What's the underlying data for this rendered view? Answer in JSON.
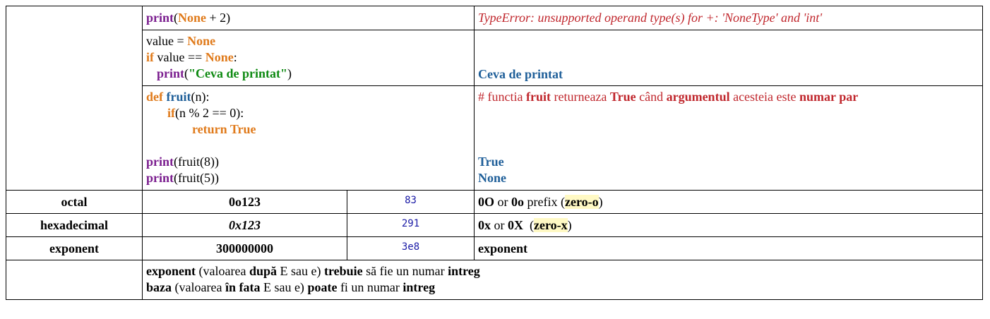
{
  "row1": {
    "code": {
      "fn": "print",
      "open": "(",
      "kw": "None",
      "rest": " + 2)"
    },
    "result": "TypeError: unsupported operand type(s) for +: 'NoneType' and 'int'"
  },
  "row2": {
    "line1": {
      "pre": "value = ",
      "kw": "None"
    },
    "line2": {
      "kw1": "if",
      "mid": " value == ",
      "kw2": "None",
      "post": ":"
    },
    "line3": {
      "fn": "print",
      "open": "(",
      "str": "\"Ceva de printat\"",
      "close": ")"
    },
    "result": "Ceva de printat"
  },
  "row3": {
    "def_kw": "def",
    "def_name": "fruit",
    "def_params": "(n):",
    "if_kw": "if",
    "if_rest": "(n % 2 == 0):",
    "return_kw": "return True",
    "print1": {
      "fn": "print",
      "rest": "(fruit(8))"
    },
    "print2": {
      "fn": "print",
      "rest": "(fruit(5))"
    },
    "comment": {
      "p1": "# functia ",
      "b1": "fruit",
      "p2": " returneaza ",
      "b2": "True",
      "p3": " când ",
      "b3": "argumentul",
      "p4": " acesteia este ",
      "b4": "numar par"
    },
    "out1": "True",
    "out2": "None"
  },
  "octal": {
    "label": "octal",
    "literal": "0o123",
    "value": "83",
    "desc": {
      "b1": "0O",
      "p1": " or ",
      "b2": "0o",
      "p2": " prefix (",
      "hl": "zero-o",
      "p3": ")"
    }
  },
  "hex": {
    "label": "hexadecimal",
    "literal": "0x123",
    "value": "291",
    "desc": {
      "b1": "0x",
      "p1": " or ",
      "b2": "0X",
      "p2": "  (",
      "hl": "zero-x",
      "p3": ")"
    }
  },
  "exponent": {
    "label": "exponent",
    "literal": "300000000",
    "value": "3e8",
    "desc": "exponent"
  },
  "notes": {
    "line1": {
      "b1": "exponent",
      "p1": " (valoarea ",
      "b2": "după",
      "p2": " E sau e) ",
      "b3": "trebuie",
      "p3": " să fie un numar ",
      "b4": "intreg"
    },
    "line2": {
      "b1": "baza",
      "p1": " (valoarea ",
      "b2": "în fata",
      "p2": " E sau e) ",
      "b3": "poate",
      "p3": " fi un numar ",
      "b4": "intreg"
    }
  },
  "colors": {
    "keyword": "#e07b1c",
    "function": "#7b1e8f",
    "string": "#0e8a12",
    "output": "#1f5f99",
    "error": "#c0272d",
    "highlight": "#fff9c4"
  }
}
